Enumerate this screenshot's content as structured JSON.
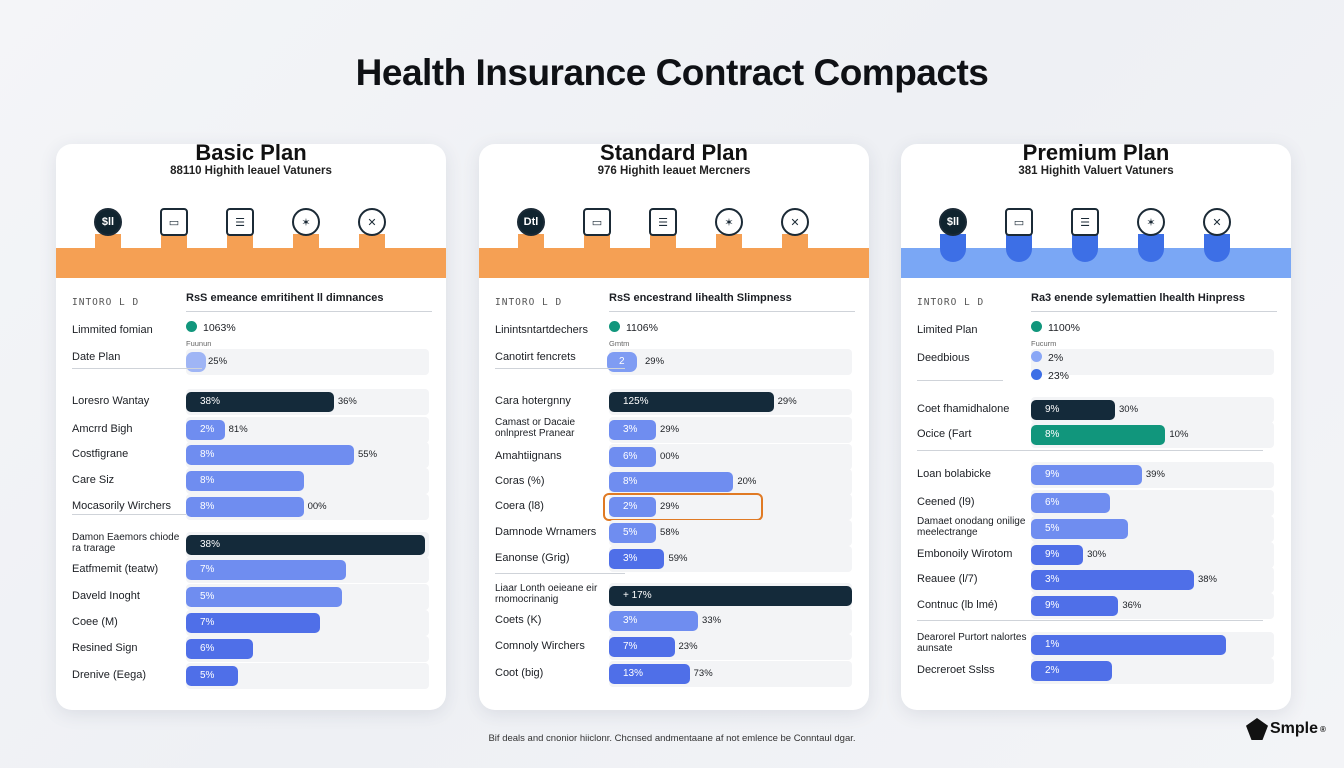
{
  "title": "Health Insurance Contract Compacts",
  "footer": "Bif deals and cnonior hiiclonr. Chcnsed andmentaane af not emlence be Conntaul dgar.",
  "brand": {
    "name": "Smple",
    "mark": "®"
  },
  "colors": {
    "orange": "#f5a054",
    "blue": "#7aa7f5",
    "navy": "#142a3a",
    "bar_blue": "#6f8df0",
    "bar_deep": "#4f6fe8",
    "teal": "#11967c"
  },
  "chart_data": [
    {
      "type": "bar",
      "title": "Basic Plan",
      "subtitle": "88110 Highith leauel Vatuners",
      "header_left": "INTORO L D",
      "header_right": "RsS emeance emritihent ll dimnances",
      "icons": [
        "plan-badge-icon",
        "monitor-icon",
        "server-icon",
        "activity-icon",
        "medical-icon"
      ],
      "icon_texts": [
        "$ll"
      ],
      "top_rows": [
        {
          "label": "Limmited fomian",
          "value_text": "1063%",
          "note": "Fuunun"
        },
        {
          "label": "Date Plan",
          "value_text": "25%"
        }
      ],
      "rows": [
        {
          "label": "Loresro Wantay",
          "value": 88,
          "bar_text": "38%",
          "end_text": "36%",
          "style": "navy"
        },
        {
          "label": "Amcrrd Bigh",
          "value": 23,
          "bar_text": "2%",
          "end_text": "81%",
          "style": "blue"
        },
        {
          "label": "Costfigrane",
          "value": 100,
          "bar_text": "8%",
          "end_text": "55%",
          "style": "blue"
        },
        {
          "label": "Care Siz",
          "value": 70,
          "bar_text": "8%",
          "end_text": "",
          "style": "blue"
        },
        {
          "label": "Mocasorily Wirchers",
          "value": 70,
          "bar_text": "8%",
          "end_text": "00%",
          "style": "blue"
        },
        {
          "label": "Damon Eaemors chiode ra trarage",
          "value": 142,
          "bar_text": "38%",
          "end_text": "",
          "style": "navy"
        },
        {
          "label": "Eatfmemit (teatw)",
          "value": 95,
          "bar_text": "7%",
          "end_text": "",
          "style": "blue"
        },
        {
          "label": "Daveld Inoght",
          "value": 93,
          "bar_text": "5%",
          "end_text": "",
          "style": "blue"
        },
        {
          "label": "Coee (M)",
          "value": 80,
          "bar_text": "7%",
          "end_text": "",
          "style": "deep"
        },
        {
          "label": "Resined Sign",
          "value": 40,
          "bar_text": "6%",
          "end_text": "",
          "style": "deep"
        },
        {
          "label": "Drenive (Eega)",
          "value": 31,
          "bar_text": "5%",
          "end_text": "",
          "style": "deep"
        }
      ]
    },
    {
      "type": "bar",
      "title": "Standard Plan",
      "subtitle": "976 Highith leauet Mercners",
      "header_left": "INTORO L D",
      "header_right": "RsS encestrand lihealth Slimpness",
      "icons": [
        "plan-badge-icon",
        "monitor-icon",
        "server-icon",
        "activity-icon",
        "medical-icon"
      ],
      "icon_texts": [
        "Dtl"
      ],
      "top_rows": [
        {
          "label": "Linintsntartdechers",
          "value_text": "1106%",
          "note": "Gmtm"
        },
        {
          "label": "Canotirt fencrets",
          "value_text": "29%",
          "chip": "2"
        }
      ],
      "rows": [
        {
          "label": "Cara hotergnny",
          "value": 98,
          "bar_text": "125%",
          "end_text": "29%",
          "style": "navy"
        },
        {
          "label": "Camast or Dacaie onlnprest Pranear",
          "value": 28,
          "bar_text": "3%",
          "end_text": "29%",
          "style": "blue"
        },
        {
          "label": "Amahtiignans",
          "value": 28,
          "bar_text": "6%",
          "end_text": "00%",
          "style": "blue"
        },
        {
          "label": "Coras (%)",
          "value": 74,
          "bar_text": "8%",
          "end_text": "20%",
          "style": "blue"
        },
        {
          "label": "Coera (l8)",
          "value": 28,
          "bar_text": "2%",
          "end_text": "29%",
          "style": "blue",
          "highlight": true
        },
        {
          "label": "Damnode Wrnamers",
          "value": 28,
          "bar_text": "5%",
          "end_text": "58%",
          "style": "blue"
        },
        {
          "label": "Eanonse (Grig)",
          "value": 33,
          "bar_text": "3%",
          "end_text": "59%",
          "style": "deep"
        },
        {
          "label": "Liaar Lonth oeieane eir rnomocrinanig",
          "value": 148,
          "bar_text": "+ 17%",
          "end_text": "",
          "style": "navy"
        },
        {
          "label": "Coets (K)",
          "value": 53,
          "bar_text": "3%",
          "end_text": "33%",
          "style": "blue"
        },
        {
          "label": "Comnoly Wirchers",
          "value": 39,
          "bar_text": "7%",
          "end_text": "23%",
          "style": "deep"
        },
        {
          "label": "Coot (big)",
          "value": 48,
          "bar_text": "13%",
          "end_text": "73%",
          "style": "deep"
        }
      ]
    },
    {
      "type": "bar",
      "title": "Premium Plan",
      "subtitle": "381 Highith Valuert Vatuners",
      "header_left": "INTORO L D",
      "header_right": "Ra3 enende sylemattien lhealth Hinpress",
      "icons": [
        "plan-badge-icon",
        "monitor-icon",
        "server-icon",
        "activity-icon",
        "medical-icon"
      ],
      "icon_texts": [
        "$ll"
      ],
      "top_rows": [
        {
          "label": "Limited Plan",
          "value_text": "1100%",
          "note": "Fucurm"
        },
        {
          "label": "Deedbious",
          "value_text": "2%",
          "extra": "23%"
        }
      ],
      "rows": [
        {
          "label": "Coet fhamidhalone",
          "value": 50,
          "bar_text": "9%",
          "end_text": "30%",
          "style": "navy"
        },
        {
          "label": "Ocice (Fart",
          "value": 80,
          "bar_text": "8%",
          "end_text": "10%",
          "style": "teal"
        },
        {
          "label": "Loan bolabicke",
          "value": 66,
          "bar_text": "9%",
          "end_text": "39%",
          "style": "blue"
        },
        {
          "label": "Ceened (l9)",
          "value": 47,
          "bar_text": "6%",
          "end_text": "",
          "style": "blue"
        },
        {
          "label": "Damaet onodang onilige meelectrange",
          "value": 58,
          "bar_text": "5%",
          "end_text": "",
          "style": "blue"
        },
        {
          "label": "Embonoily Wirotom",
          "value": 31,
          "bar_text": "9%",
          "end_text": "30%",
          "style": "deep"
        },
        {
          "label": "Reauee (l/7)",
          "value": 97,
          "bar_text": "3%",
          "end_text": "38%",
          "style": "deep"
        },
        {
          "label": "Contnuc (lb lmé)",
          "value": 52,
          "bar_text": "9%",
          "end_text": "36%",
          "style": "deep"
        },
        {
          "label": "Dearorel Purtort nalortes aunsate",
          "value": 116,
          "bar_text": "1%",
          "end_text": "",
          "style": "deep"
        },
        {
          "label": "Decreroet Sslss",
          "value": 48,
          "bar_text": "2%",
          "end_text": "",
          "style": "deep"
        }
      ]
    }
  ]
}
